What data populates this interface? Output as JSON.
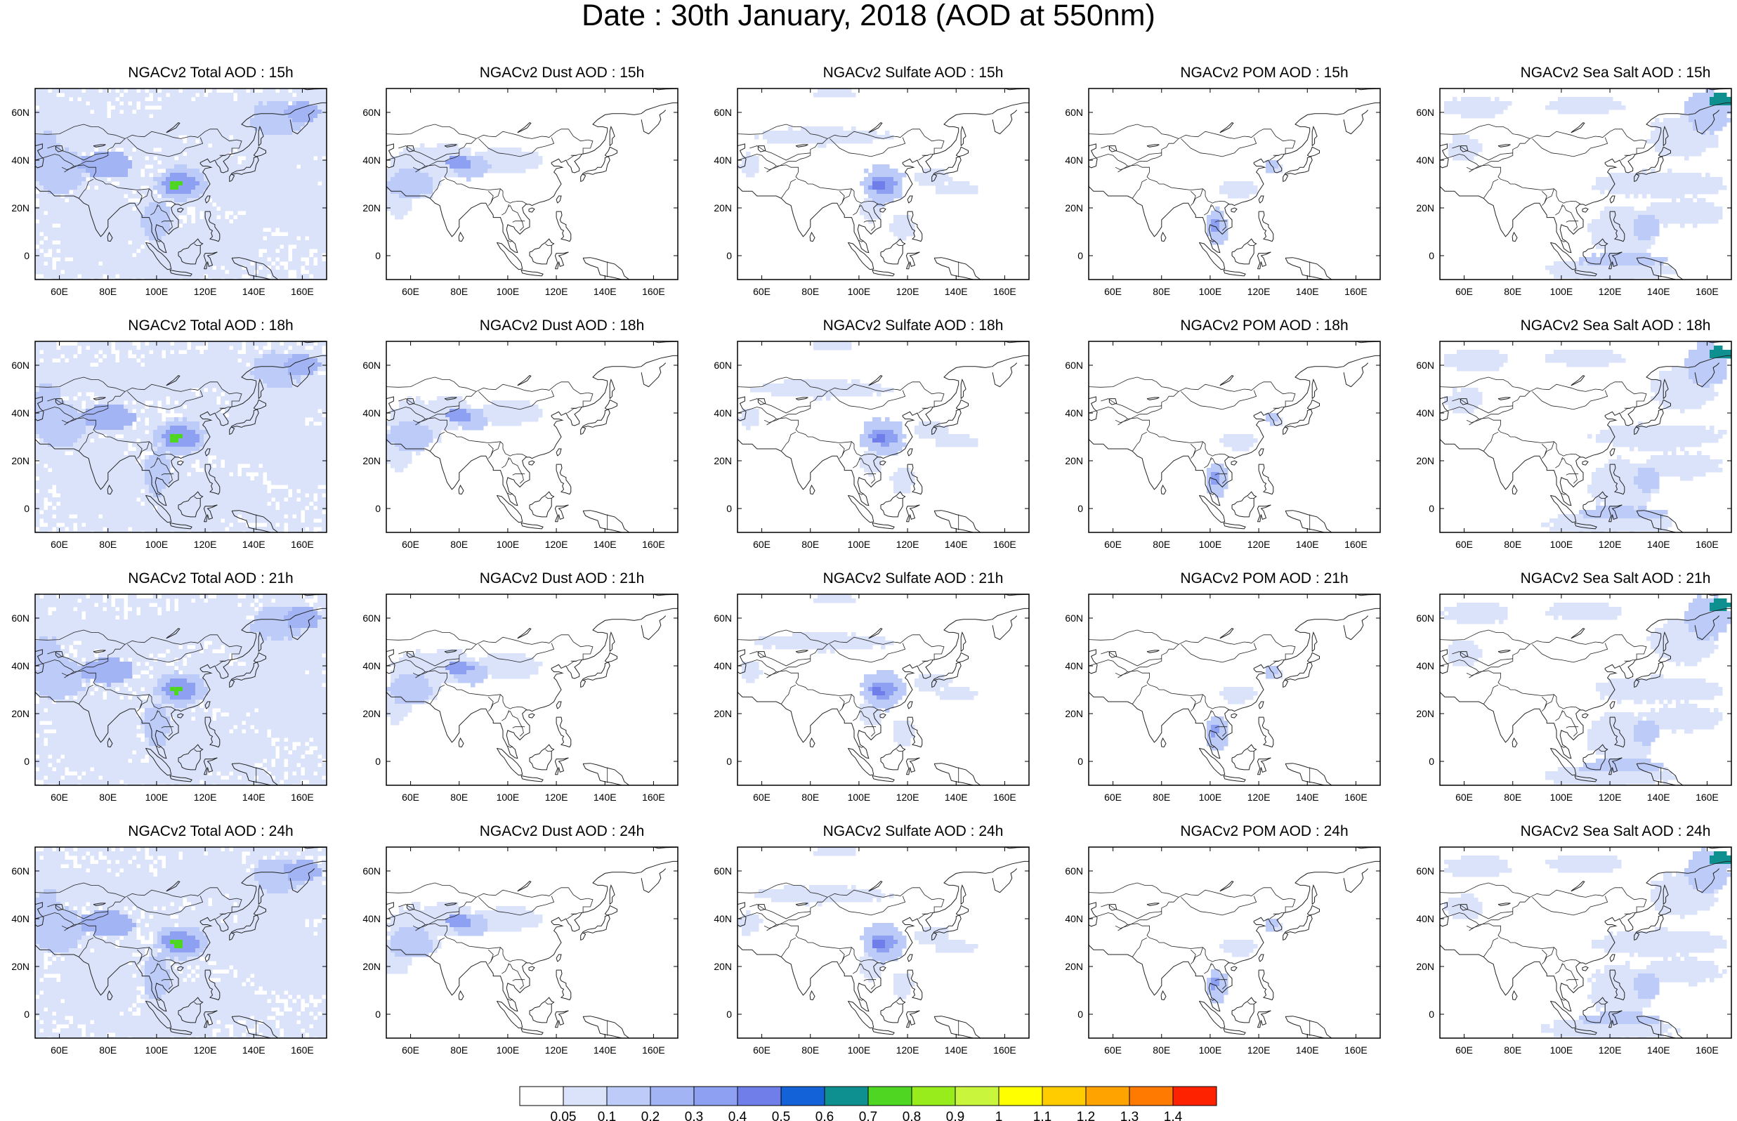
{
  "title": "Date : 30th January, 2018 (AOD at 550nm)",
  "panels": [
    {
      "title": "NGACv2 Total AOD : 15h",
      "species": "total"
    },
    {
      "title": "NGACv2 Dust AOD : 15h",
      "species": "dust"
    },
    {
      "title": "NGACv2 Sulfate AOD : 15h",
      "species": "sulfate"
    },
    {
      "title": "NGACv2 POM AOD : 15h",
      "species": "pom"
    },
    {
      "title": "NGACv2 Sea Salt AOD : 15h",
      "species": "seasalt"
    },
    {
      "title": "NGACv2 Total AOD : 18h",
      "species": "total"
    },
    {
      "title": "NGACv2 Dust AOD : 18h",
      "species": "dust"
    },
    {
      "title": "NGACv2 Sulfate AOD : 18h",
      "species": "sulfate"
    },
    {
      "title": "NGACv2 POM AOD : 18h",
      "species": "pom"
    },
    {
      "title": "NGACv2 Sea Salt AOD : 18h",
      "species": "seasalt"
    },
    {
      "title": "NGACv2 Total AOD : 21h",
      "species": "total"
    },
    {
      "title": "NGACv2 Dust AOD : 21h",
      "species": "dust"
    },
    {
      "title": "NGACv2 Sulfate AOD : 21h",
      "species": "sulfate"
    },
    {
      "title": "NGACv2 POM AOD : 21h",
      "species": "pom"
    },
    {
      "title": "NGACv2 Sea Salt AOD : 21h",
      "species": "seasalt"
    },
    {
      "title": "NGACv2 Total AOD : 24h",
      "species": "total"
    },
    {
      "title": "NGACv2 Dust AOD : 24h",
      "species": "dust"
    },
    {
      "title": "NGACv2 Sulfate AOD : 24h",
      "species": "sulfate"
    },
    {
      "title": "NGACv2 POM AOD : 24h",
      "species": "pom"
    },
    {
      "title": "NGACv2 Sea Salt  AOD : 24h",
      "species": "seasalt"
    }
  ],
  "map": {
    "lat_labels": [
      "60N",
      "40N",
      "20N",
      "0"
    ],
    "lat_values": [
      60,
      40,
      20,
      0
    ],
    "lon_labels": [
      "60E",
      "80E",
      "100E",
      "120E",
      "140E",
      "160E"
    ],
    "lon_values": [
      60,
      80,
      100,
      120,
      140,
      160
    ],
    "lon_range": [
      50,
      170
    ],
    "lat_range": [
      -10,
      70
    ]
  },
  "colorbar": {
    "labels": [
      "0.05",
      "0.1",
      "0.2",
      "0.3",
      "0.4",
      "0.5",
      "0.6",
      "0.7",
      "0.8",
      "0.9",
      "1",
      "1.1",
      "1.2",
      "1.3",
      "1.4"
    ],
    "colors": [
      "#ffffff",
      "#dbe3fb",
      "#bccbf7",
      "#a2b4f4",
      "#8ea0f2",
      "#6f7ee9",
      "#5b66e4",
      "#1462d8",
      "#0f9090",
      "#4ed623",
      "#98ec1c",
      "#c9f53d",
      "#ffff00",
      "#ffcc00",
      "#ffa300",
      "#ff7a00",
      "#ff2200"
    ]
  }
}
